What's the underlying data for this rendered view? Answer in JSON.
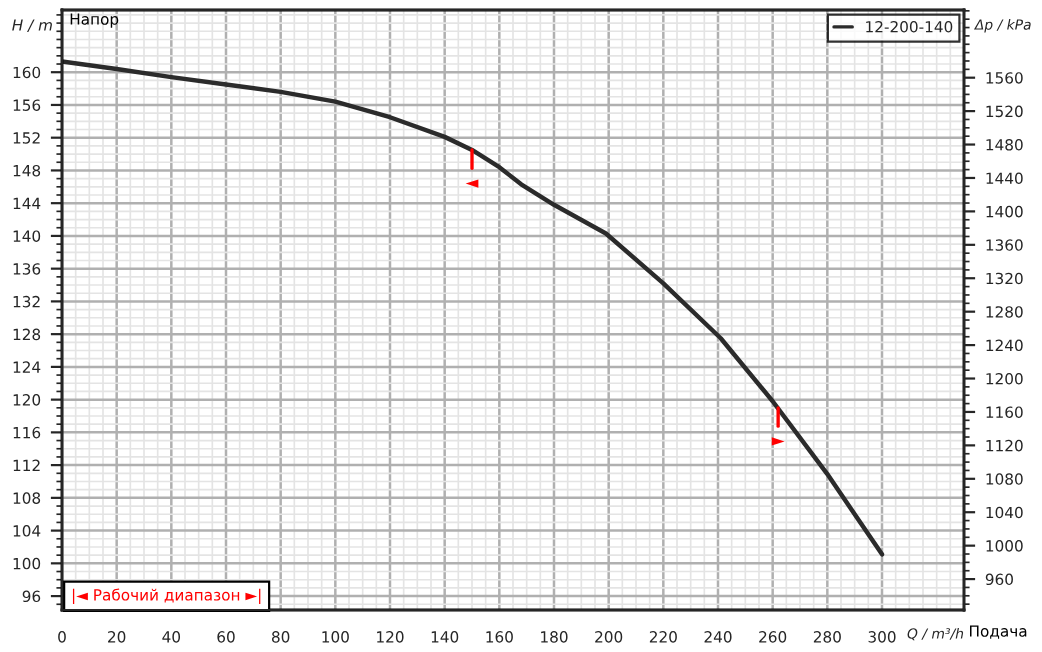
{
  "chart_data": {
    "type": "line",
    "x": [
      0,
      20,
      40,
      60,
      80,
      100,
      120,
      140,
      150,
      160,
      168,
      180,
      199,
      220,
      241,
      260,
      280,
      300
    ],
    "series": [
      {
        "name": "12-200-140",
        "color": "#2b2b2b",
        "values": [
          161.3,
          160.4,
          159.4,
          158.5,
          157.6,
          156.4,
          154.5,
          152.1,
          150.5,
          148.4,
          146.3,
          143.8,
          140.3,
          134.2,
          127.5,
          119.8,
          110.9,
          101.1
        ]
      }
    ],
    "xlabel": "Q / m³/h",
    "ylabel": "H / m",
    "y2label": "Δp / kPa",
    "xlim": [
      0,
      330
    ],
    "xticks": [
      0,
      20,
      40,
      60,
      80,
      100,
      120,
      140,
      160,
      180,
      200,
      220,
      240,
      260,
      280,
      300
    ],
    "ylim": [
      94.3,
      167.6
    ],
    "yticks": [
      96,
      100,
      104,
      108,
      112,
      116,
      120,
      124,
      128,
      132,
      136,
      140,
      144,
      148,
      152,
      156,
      160
    ],
    "y2lim": [
      923,
      1641
    ],
    "y2ticks": [
      960,
      1000,
      1040,
      1080,
      1120,
      1160,
      1200,
      1240,
      1280,
      1320,
      1360,
      1400,
      1440,
      1480,
      1520,
      1560
    ],
    "annotations": [
      "Напор",
      "Подача",
      "|◄ Рабочий диапазон ►|",
      {
        "text": "◄",
        "x": 150,
        "y": 150.5
      },
      {
        "text": "►",
        "x": 262,
        "y": 119.0
      }
    ],
    "grid": true,
    "legend": "top right",
    "marker": "none",
    "line_style": "solid"
  }
}
